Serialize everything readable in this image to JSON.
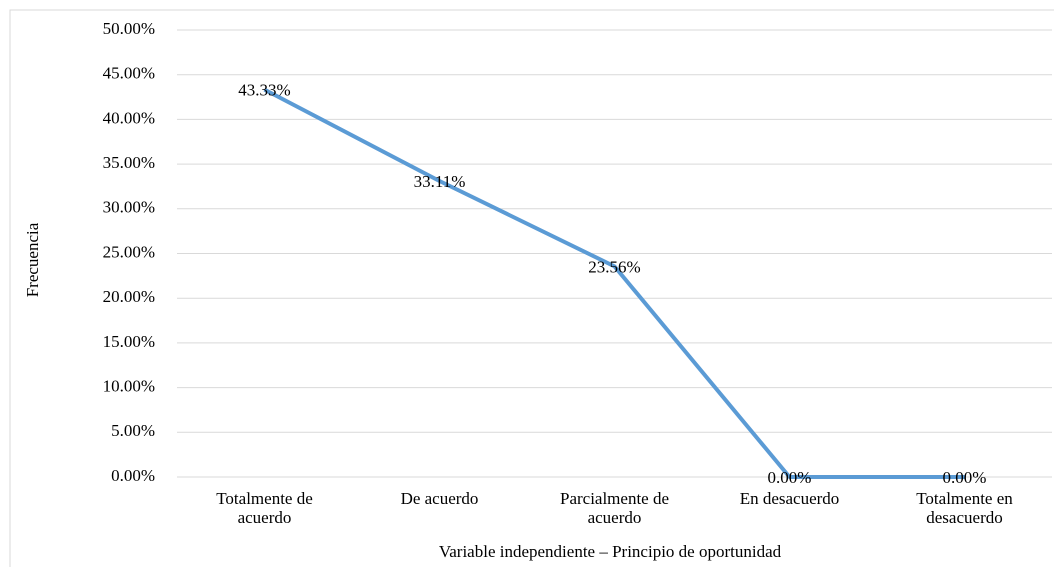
{
  "chart_data": {
    "type": "line",
    "x_label": "Variable independiente – Principio de oportunidad",
    "y_label": "Frecuencia",
    "categories": [
      "Totalmente de acuerdo",
      "De acuerdo",
      "Parcialmente de acuerdo",
      "En desacuerdo",
      "Totalmente en desacuerdo"
    ],
    "values": [
      43.33,
      33.11,
      23.56,
      0,
      0
    ],
    "value_labels": [
      "43.33%",
      "33.11%",
      "23.56%",
      "0.00%",
      "0.00%"
    ],
    "color": "#5b9bd5",
    "ylim": [
      0,
      50
    ],
    "yticks": [
      {
        "value": 0,
        "label": "0.00%"
      },
      {
        "value": 5,
        "label": "5.00%"
      },
      {
        "value": 10,
        "label": "10.00%"
      },
      {
        "value": 15,
        "label": "15.00%"
      },
      {
        "value": 20,
        "label": "20.00%"
      },
      {
        "value": 25,
        "label": "25.00%"
      },
      {
        "value": 30,
        "label": "30.00%"
      },
      {
        "value": 35,
        "label": "35.00%"
      },
      {
        "value": 40,
        "label": "40.00%"
      },
      {
        "value": 45,
        "label": "45.00%"
      },
      {
        "value": 50,
        "label": "50.00%"
      }
    ],
    "grid": true
  }
}
